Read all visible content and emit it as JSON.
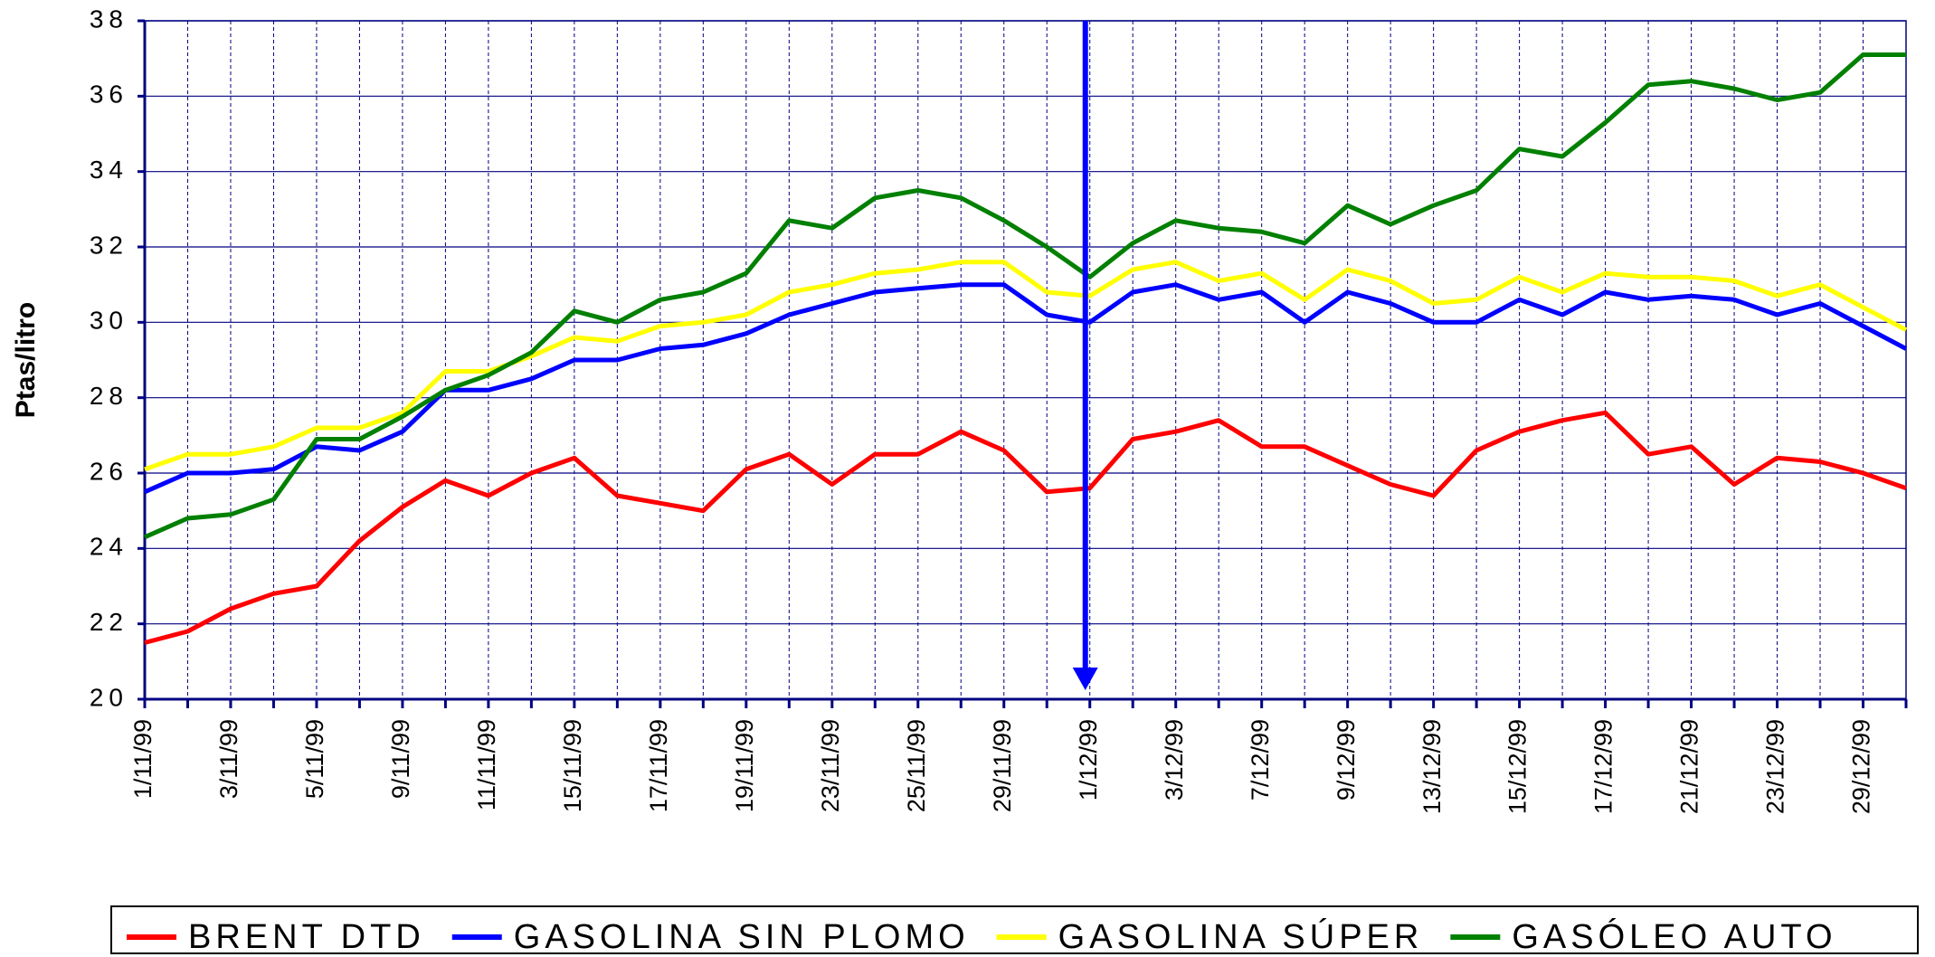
{
  "chart_data": {
    "type": "line",
    "y_label": "Ptas/litro",
    "categories": [
      "1/11/99",
      null,
      "3/11/99",
      null,
      "5/11/99",
      null,
      "9/11/99",
      null,
      "11/11/99",
      null,
      "15/11/99",
      null,
      "17/11/99",
      null,
      "19/11/99",
      null,
      "23/11/99",
      null,
      "25/11/99",
      null,
      "29/11/99",
      null,
      "1/12/99",
      null,
      "3/12/99",
      null,
      "7/12/99",
      null,
      "9/12/99",
      null,
      "13/12/99",
      null,
      "15/12/99",
      null,
      "17/12/99",
      null,
      "21/12/99",
      null,
      "23/12/99",
      null,
      "29/12/99",
      null
    ],
    "series": [
      {
        "name": "BRENT DTD",
        "color": "#ff0000",
        "values": [
          21.5,
          21.8,
          22.4,
          22.8,
          23.0,
          24.2,
          25.1,
          25.8,
          25.4,
          26.0,
          26.4,
          25.4,
          25.2,
          25.0,
          26.1,
          26.5,
          25.7,
          26.5,
          26.5,
          27.1,
          26.6,
          25.5,
          25.6,
          26.9,
          27.1,
          27.4,
          26.7,
          26.7,
          26.2,
          25.7,
          25.4,
          26.6,
          27.1,
          27.4,
          27.6,
          26.5,
          26.7,
          25.7,
          26.4,
          26.3,
          26.0,
          25.6
        ]
      },
      {
        "name": "GASOLINA SIN PLOMO",
        "color": "#0000ff",
        "values": [
          25.5,
          26.0,
          26.0,
          26.1,
          26.7,
          26.6,
          27.1,
          28.2,
          28.2,
          28.5,
          29.0,
          29.0,
          29.3,
          29.4,
          29.7,
          30.2,
          30.5,
          30.8,
          30.9,
          31.0,
          31.0,
          30.2,
          30.0,
          30.8,
          31.0,
          30.6,
          30.8,
          30.0,
          30.8,
          30.5,
          30.0,
          30.0,
          30.6,
          30.2,
          30.8,
          30.6,
          30.7,
          30.6,
          30.2,
          30.5,
          29.9,
          29.3
        ]
      },
      {
        "name": "GASOLINA SÚPER",
        "color": "#ffff00",
        "values": [
          26.1,
          26.5,
          26.5,
          26.7,
          27.2,
          27.2,
          27.6,
          28.7,
          28.7,
          29.1,
          29.6,
          29.5,
          29.9,
          30.0,
          30.2,
          30.8,
          31.0,
          31.3,
          31.4,
          31.6,
          31.6,
          30.8,
          30.7,
          31.4,
          31.6,
          31.1,
          31.3,
          30.6,
          31.4,
          31.1,
          30.5,
          30.6,
          31.2,
          30.8,
          31.3,
          31.2,
          31.2,
          31.1,
          30.7,
          31.0,
          30.4,
          29.8
        ]
      },
      {
        "name": "GASÓLEO AUTO",
        "color": "#008000",
        "values": [
          24.3,
          24.8,
          24.9,
          25.3,
          26.9,
          26.9,
          27.5,
          28.2,
          28.6,
          29.2,
          30.3,
          30.0,
          30.6,
          30.8,
          31.3,
          32.7,
          32.5,
          33.3,
          33.5,
          33.3,
          32.7,
          32.0,
          31.2,
          32.1,
          32.7,
          32.5,
          32.4,
          32.1,
          33.1,
          32.6,
          33.1,
          33.5,
          34.6,
          34.4,
          35.3,
          36.3,
          36.4,
          36.2,
          35.9,
          36.1,
          37.1,
          37.1
        ]
      }
    ],
    "ylim": [
      20,
      38
    ],
    "yticks": [
      20,
      22,
      24,
      26,
      28,
      30,
      32,
      34,
      36,
      38
    ],
    "grid": true
  }
}
